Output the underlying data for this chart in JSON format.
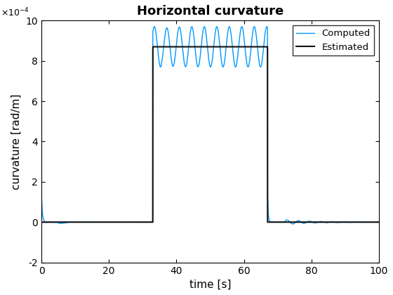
{
  "title": "Horizontal curvature",
  "xlabel": "time [s]",
  "ylabel": "curvature [rad/m]",
  "xlim": [
    0,
    100
  ],
  "ylim": [
    -0.0002,
    0.001
  ],
  "yticks": [
    -0.0002,
    0,
    0.0002,
    0.0004,
    0.0006,
    0.0008,
    0.001
  ],
  "ytick_labels": [
    "-2",
    "0",
    "2",
    "4",
    "6",
    "8",
    "10"
  ],
  "xticks": [
    0,
    20,
    40,
    60,
    80,
    100
  ],
  "computed_color": "#0099ff",
  "estimated_color": "#111111",
  "legend_labels": [
    "Computed",
    "Estimated"
  ],
  "computed_lw": 1.0,
  "estimated_lw": 1.5,
  "step_up_t": 33.0,
  "step_down_t": 67.0,
  "step_value": 0.00087,
  "osc_amplitude": 0.0001,
  "osc_freq_hz": 0.27,
  "spike_amplitude": 0.00015,
  "spike_decay": 4.0,
  "post_osc_amp": 1.2e-05,
  "post_osc_freq": 0.3,
  "post_osc_decay": 0.12
}
